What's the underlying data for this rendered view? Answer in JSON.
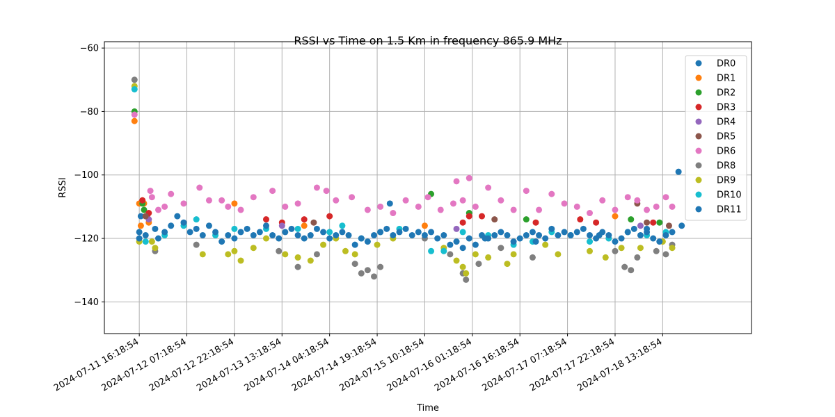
{
  "chart_data": {
    "type": "scatter",
    "title": "RSSI vs Time on 1.5 Km in frequency 865.9 MHz",
    "xlabel": "Time",
    "ylabel": "RSSI",
    "ylim": [
      -150,
      -58
    ],
    "yticks": [
      -60,
      -80,
      -100,
      -120,
      -140
    ],
    "xlim_hours": [
      -11,
      193
    ],
    "xticks": [
      {
        "hours": 0,
        "label": "2024-07-11 16:18:54"
      },
      {
        "hours": 15,
        "label": "2024-07-12 07:18:54"
      },
      {
        "hours": 30,
        "label": "2024-07-12 22:18:54"
      },
      {
        "hours": 45,
        "label": "2024-07-13 13:18:54"
      },
      {
        "hours": 60,
        "label": "2024-07-14 04:18:54"
      },
      {
        "hours": 75,
        "label": "2024-07-14 19:18:54"
      },
      {
        "hours": 90,
        "label": "2024-07-15 10:18:54"
      },
      {
        "hours": 105,
        "label": "2024-07-16 01:18:54"
      },
      {
        "hours": 120,
        "label": "2024-07-16 16:18:54"
      },
      {
        "hours": 135,
        "label": "2024-07-17 07:18:54"
      },
      {
        "hours": 150,
        "label": "2024-07-17 22:18:54"
      },
      {
        "hours": 165,
        "label": "2024-07-18 13:18:54"
      }
    ],
    "grid": true,
    "legend_position": "top-right",
    "series": [
      {
        "name": "DR0",
        "color": "#1f77b4",
        "points": [
          [
            0,
            -118
          ],
          [
            0.5,
            -113
          ],
          [
            170,
            -99
          ],
          [
            160,
            -117
          ],
          [
            171,
            -116
          ]
        ]
      },
      {
        "name": "DR1",
        "color": "#ff7f0e",
        "points": [
          [
            -1.5,
            -83
          ],
          [
            0,
            -109
          ],
          [
            0.5,
            -116
          ],
          [
            1,
            -108
          ],
          [
            1.5,
            -109
          ],
          [
            3,
            -115
          ],
          [
            30,
            -109
          ],
          [
            52,
            -116
          ],
          [
            90,
            -116
          ],
          [
            150,
            -113
          ]
        ]
      },
      {
        "name": "DR2",
        "color": "#2ca02c",
        "points": [
          [
            -1.5,
            -80
          ],
          [
            1,
            -109
          ],
          [
            1.5,
            -111
          ],
          [
            92,
            -106
          ],
          [
            104,
            -112
          ],
          [
            122,
            -114
          ],
          [
            155,
            -114
          ],
          [
            164,
            -115
          ]
        ]
      },
      {
        "name": "DR3",
        "color": "#d62728",
        "points": [
          [
            1,
            -108
          ],
          [
            2.5,
            -113
          ],
          [
            3,
            -112
          ],
          [
            40,
            -114
          ],
          [
            45,
            -115
          ],
          [
            52,
            -114
          ],
          [
            60,
            -113
          ],
          [
            102,
            -115
          ],
          [
            104,
            -113
          ],
          [
            108,
            -113
          ],
          [
            125,
            -115
          ],
          [
            139,
            -114
          ],
          [
            144,
            -115
          ],
          [
            162,
            -115
          ]
        ]
      },
      {
        "name": "DR4",
        "color": "#9467bd",
        "points": [
          [
            3,
            -114
          ],
          [
            45,
            -116
          ],
          [
            100,
            -117
          ],
          [
            158,
            -116
          ]
        ]
      },
      {
        "name": "DR5",
        "color": "#8c564b",
        "points": [
          [
            2,
            -113
          ],
          [
            55,
            -115
          ],
          [
            112,
            -114
          ],
          [
            160,
            -115
          ],
          [
            157,
            -109
          ],
          [
            167,
            -116
          ]
        ]
      },
      {
        "name": "DR6",
        "color": "#e377c2",
        "points": [
          [
            -1.5,
            -81
          ],
          [
            3.5,
            -105
          ],
          [
            4,
            -107
          ],
          [
            8,
            -110
          ],
          [
            10,
            -106
          ],
          [
            14,
            -109
          ],
          [
            19,
            -104
          ],
          [
            22,
            -108
          ],
          [
            26,
            -108
          ],
          [
            32,
            -111
          ],
          [
            36,
            -107
          ],
          [
            42,
            -105
          ],
          [
            46,
            -110
          ],
          [
            50,
            -109
          ],
          [
            56,
            -104
          ],
          [
            59,
            -105
          ],
          [
            62,
            -108
          ],
          [
            67,
            -107
          ],
          [
            72,
            -111
          ],
          [
            76,
            -110
          ],
          [
            80,
            -112
          ],
          [
            84,
            -108
          ],
          [
            88,
            -110
          ],
          [
            91,
            -107
          ],
          [
            95,
            -111
          ],
          [
            99,
            -109
          ],
          [
            102,
            -108
          ],
          [
            104,
            -101
          ],
          [
            106,
            -110
          ],
          [
            110,
            -104
          ],
          [
            114,
            -108
          ],
          [
            118,
            -111
          ],
          [
            122,
            -105
          ],
          [
            126,
            -111
          ],
          [
            130,
            -106
          ],
          [
            134,
            -109
          ],
          [
            138,
            -110
          ],
          [
            142,
            -112
          ],
          [
            146,
            -108
          ],
          [
            150,
            -111
          ],
          [
            154,
            -107
          ],
          [
            157,
            -108
          ],
          [
            160,
            -111
          ],
          [
            163,
            -110
          ],
          [
            166,
            -107
          ],
          [
            168,
            -110
          ],
          [
            100,
            -102
          ],
          [
            6,
            -111
          ],
          [
            28,
            -110
          ]
        ]
      },
      {
        "name": "DR8",
        "color": "#7f7f7f",
        "points": [
          [
            -1.5,
            -70
          ],
          [
            5,
            -124
          ],
          [
            18,
            -122
          ],
          [
            44,
            -124
          ],
          [
            50,
            -129
          ],
          [
            56,
            -125
          ],
          [
            68,
            -128
          ],
          [
            70,
            -131
          ],
          [
            72,
            -130
          ],
          [
            74,
            -132
          ],
          [
            76,
            -129
          ],
          [
            90,
            -120
          ],
          [
            98,
            -125
          ],
          [
            102,
            -131
          ],
          [
            103,
            -133
          ],
          [
            107,
            -128
          ],
          [
            114,
            -123
          ],
          [
            124,
            -126
          ],
          [
            150,
            -124
          ],
          [
            153,
            -129
          ],
          [
            155,
            -130
          ],
          [
            157,
            -126
          ],
          [
            163,
            -124
          ],
          [
            166,
            -125
          ],
          [
            168,
            -122
          ]
        ]
      },
      {
        "name": "DR9",
        "color": "#bcbd22",
        "points": [
          [
            -1.5,
            -72
          ],
          [
            0,
            -121
          ],
          [
            4,
            -121
          ],
          [
            5,
            -123
          ],
          [
            20,
            -125
          ],
          [
            28,
            -125
          ],
          [
            30,
            -124
          ],
          [
            32,
            -127
          ],
          [
            36,
            -123
          ],
          [
            40,
            -120
          ],
          [
            46,
            -125
          ],
          [
            50,
            -126
          ],
          [
            54,
            -127
          ],
          [
            58,
            -122
          ],
          [
            62,
            -120
          ],
          [
            65,
            -124
          ],
          [
            68,
            -125
          ],
          [
            75,
            -122
          ],
          [
            80,
            -120
          ],
          [
            96,
            -123
          ],
          [
            100,
            -127
          ],
          [
            102,
            -129
          ],
          [
            103,
            -131
          ],
          [
            106,
            -125
          ],
          [
            110,
            -126
          ],
          [
            116,
            -128
          ],
          [
            118,
            -125
          ],
          [
            128,
            -122
          ],
          [
            132,
            -125
          ],
          [
            142,
            -124
          ],
          [
            147,
            -126
          ],
          [
            152,
            -123
          ],
          [
            158,
            -123
          ],
          [
            165,
            -121
          ],
          [
            168,
            -123
          ]
        ]
      },
      {
        "name": "DR10",
        "color": "#17becf",
        "points": [
          [
            -1.5,
            -73
          ],
          [
            2,
            -121
          ],
          [
            8,
            -119
          ],
          [
            14,
            -116
          ],
          [
            18,
            -114
          ],
          [
            24,
            -119
          ],
          [
            30,
            -117
          ],
          [
            40,
            -117
          ],
          [
            50,
            -117
          ],
          [
            60,
            -118
          ],
          [
            64,
            -116
          ],
          [
            70,
            -120
          ],
          [
            76,
            -118
          ],
          [
            82,
            -117
          ],
          [
            92,
            -124
          ],
          [
            96,
            -124
          ],
          [
            102,
            -118
          ],
          [
            110,
            -119
          ],
          [
            118,
            -122
          ],
          [
            124,
            -121
          ],
          [
            130,
            -118
          ],
          [
            136,
            -119
          ],
          [
            142,
            -121
          ],
          [
            148,
            -120
          ],
          [
            154,
            -118
          ],
          [
            160,
            -119
          ],
          [
            166,
            -118
          ]
        ]
      },
      {
        "name": "DR11",
        "color": "#1f77b4",
        "points": [
          [
            0,
            -120
          ],
          [
            2,
            -119
          ],
          [
            5,
            -117
          ],
          [
            6,
            -120
          ],
          [
            8,
            -118
          ],
          [
            10,
            -116
          ],
          [
            12,
            -113
          ],
          [
            14,
            -115
          ],
          [
            16,
            -118
          ],
          [
            18,
            -117
          ],
          [
            20,
            -119
          ],
          [
            22,
            -116
          ],
          [
            24,
            -118
          ],
          [
            26,
            -121
          ],
          [
            28,
            -119
          ],
          [
            30,
            -120
          ],
          [
            32,
            -118
          ],
          [
            34,
            -117
          ],
          [
            36,
            -119
          ],
          [
            38,
            -118
          ],
          [
            40,
            -116
          ],
          [
            42,
            -119
          ],
          [
            44,
            -120
          ],
          [
            46,
            -118
          ],
          [
            48,
            -117
          ],
          [
            50,
            -119
          ],
          [
            52,
            -120
          ],
          [
            54,
            -119
          ],
          [
            56,
            -117
          ],
          [
            58,
            -118
          ],
          [
            60,
            -120
          ],
          [
            62,
            -119
          ],
          [
            64,
            -118
          ],
          [
            66,
            -119
          ],
          [
            68,
            -122
          ],
          [
            70,
            -120
          ],
          [
            72,
            -121
          ],
          [
            74,
            -119
          ],
          [
            76,
            -118
          ],
          [
            78,
            -117
          ],
          [
            79,
            -109
          ],
          [
            80,
            -119
          ],
          [
            82,
            -118
          ],
          [
            84,
            -117
          ],
          [
            86,
            -119
          ],
          [
            88,
            -118
          ],
          [
            90,
            -119
          ],
          [
            92,
            -118
          ],
          [
            94,
            -120
          ],
          [
            96,
            -119
          ],
          [
            98,
            -122
          ],
          [
            100,
            -121
          ],
          [
            102,
            -123
          ],
          [
            104,
            -120
          ],
          [
            106,
            -122
          ],
          [
            108,
            -119
          ],
          [
            110,
            -120
          ],
          [
            112,
            -119
          ],
          [
            114,
            -118
          ],
          [
            116,
            -119
          ],
          [
            118,
            -121
          ],
          [
            120,
            -120
          ],
          [
            122,
            -119
          ],
          [
            124,
            -118
          ],
          [
            126,
            -119
          ],
          [
            128,
            -120
          ],
          [
            130,
            -117
          ],
          [
            132,
            -119
          ],
          [
            134,
            -118
          ],
          [
            136,
            -119
          ],
          [
            138,
            -118
          ],
          [
            140,
            -117
          ],
          [
            142,
            -119
          ],
          [
            144,
            -120
          ],
          [
            146,
            -118
          ],
          [
            148,
            -119
          ],
          [
            150,
            -121
          ],
          [
            152,
            -120
          ],
          [
            154,
            -118
          ],
          [
            156,
            -117
          ],
          [
            158,
            -119
          ],
          [
            160,
            -118
          ],
          [
            162,
            -120
          ],
          [
            164,
            -121
          ],
          [
            166,
            -119
          ],
          [
            168,
            -118
          ],
          [
            109,
            -120
          ],
          [
            125,
            -121
          ],
          [
            145,
            -119
          ]
        ]
      }
    ]
  }
}
